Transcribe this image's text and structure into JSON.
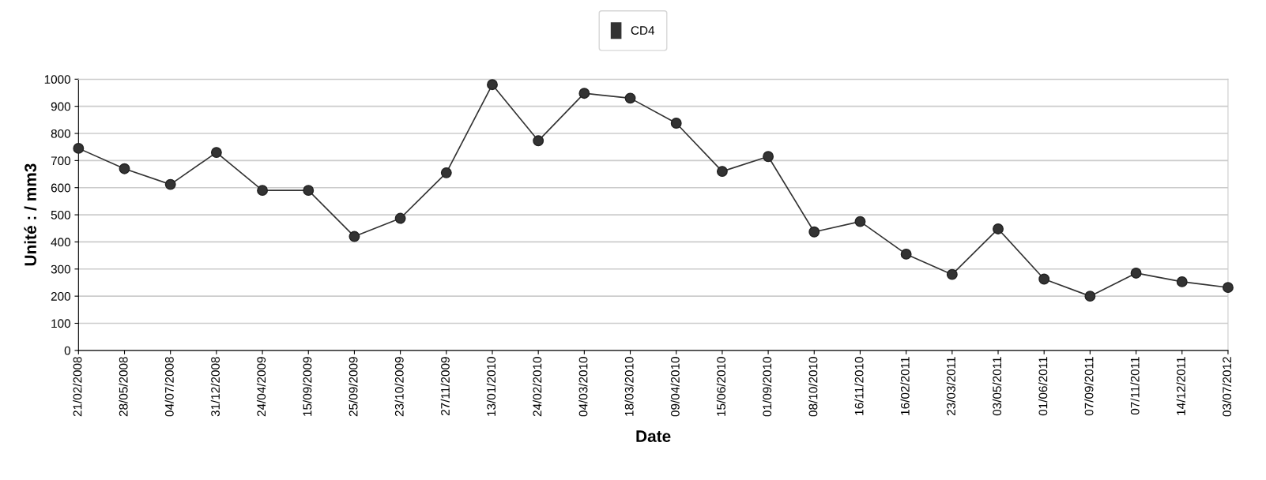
{
  "chart_data": {
    "type": "line",
    "xlabel": "Date",
    "ylabel": "Unité : / mm3",
    "categories": [
      "21/02/2008",
      "28/05/2008",
      "04/07/2008",
      "31/12/2008",
      "24/04/2009",
      "15/09/2009",
      "25/09/2009",
      "23/10/2009",
      "27/11/2009",
      "13/01/2010",
      "24/02/2010",
      "04/03/2010",
      "18/03/2010",
      "09/04/2010",
      "15/06/2010",
      "01/09/2010",
      "08/10/2010",
      "16/11/2010",
      "16/02/2011",
      "23/03/2011",
      "03/05/2011",
      "01/06/2011",
      "07/09/2011",
      "07/11/2011",
      "14/12/2011",
      "03/07/2012"
    ],
    "series": [
      {
        "name": "CD4",
        "color": "#333333",
        "values": [
          745,
          670,
          612,
          730,
          590,
          590,
          420,
          487,
          655,
          980,
          773,
          948,
          930,
          838,
          660,
          715,
          437,
          475,
          355,
          280,
          448,
          263,
          200,
          285,
          253,
          232
        ]
      }
    ],
    "ylim": [
      0,
      1000
    ],
    "yticks": [
      0,
      100,
      200,
      300,
      400,
      500,
      600,
      700,
      800,
      900,
      1000
    ],
    "grid": "y",
    "legend": "top",
    "marker": "circle",
    "line_style": "solid"
  }
}
